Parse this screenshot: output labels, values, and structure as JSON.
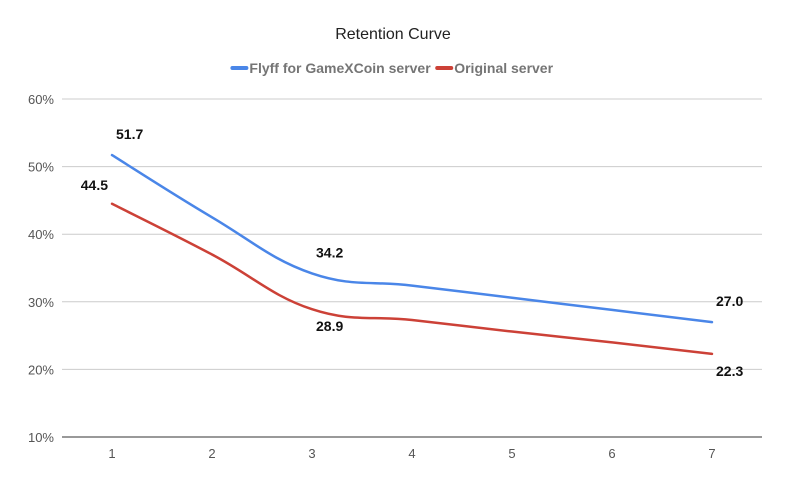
{
  "chart_data": {
    "type": "line",
    "title": "Retention Curve",
    "xlabel": "",
    "ylabel": "",
    "x": [
      1,
      2,
      3,
      4,
      5,
      6,
      7
    ],
    "x_tick_labels": [
      "1",
      "2",
      "3",
      "4",
      "5",
      "6",
      "7"
    ],
    "ylim": [
      10,
      60
    ],
    "y_ticks": [
      10,
      20,
      30,
      40,
      50,
      60
    ],
    "y_tick_labels": [
      "10%",
      "20%",
      "30%",
      "40%",
      "50%",
      "60%"
    ],
    "grid": true,
    "legend_position": "top",
    "series": [
      {
        "name": "Flyff for GameXCoin server",
        "color": "#4a86e8",
        "values": [
          51.7,
          42.5,
          34.2,
          32.4,
          30.6,
          28.8,
          27.0
        ],
        "data_labels": [
          {
            "x": 1,
            "text": "51.7",
            "position": "above"
          },
          {
            "x": 3,
            "text": "34.2",
            "position": "above"
          },
          {
            "x": 7,
            "text": "27.0",
            "position": "above"
          }
        ]
      },
      {
        "name": "Original server",
        "color": "#cc4137",
        "values": [
          44.5,
          37.0,
          28.9,
          27.3,
          25.6,
          24.0,
          22.3
        ],
        "data_labels": [
          {
            "x": 1,
            "text": "44.5",
            "position": "above-left"
          },
          {
            "x": 3,
            "text": "28.9",
            "position": "below"
          },
          {
            "x": 7,
            "text": "22.3",
            "position": "below"
          }
        ]
      }
    ]
  }
}
